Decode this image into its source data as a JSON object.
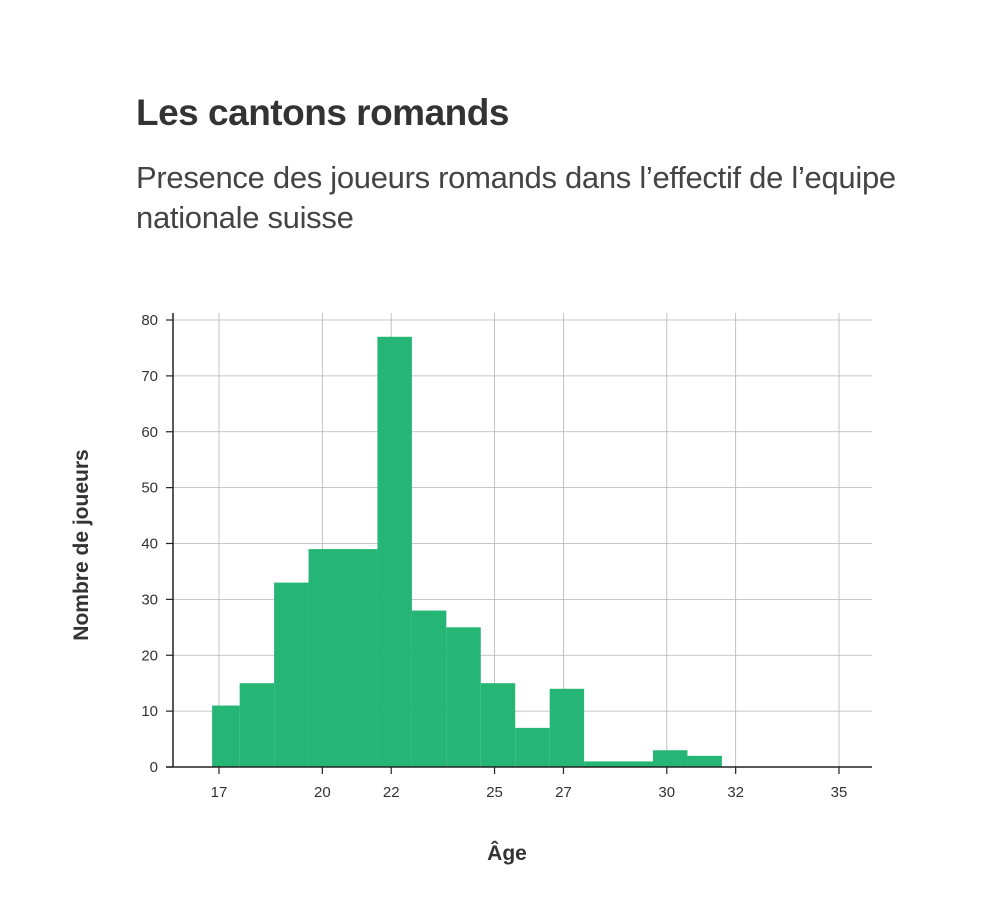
{
  "header": {
    "title": "Les cantons romands",
    "subtitle": "Presence des joueurs romands dans l’effectif de l’equipe nationale suisse"
  },
  "colors": {
    "bar": "#25b574",
    "grid": "#b5b5b5",
    "axis": "#222222",
    "text": "#333333"
  },
  "chart_data": {
    "type": "bar",
    "title": "Les cantons romands",
    "subtitle": "Presence des joueurs romands dans l’effectif de l’equipe nationale suisse",
    "xlabel": "Âge",
    "ylabel": "Nombre de joueurs",
    "xlim": [
      16,
      35.8
    ],
    "ylim": [
      0,
      80
    ],
    "x_ticks": [
      17,
      20,
      22,
      25,
      27,
      30,
      32,
      35
    ],
    "y_ticks": [
      0,
      10,
      20,
      30,
      40,
      50,
      60,
      70,
      80
    ],
    "grid": true,
    "bins": [
      {
        "x0": 16.8,
        "x1": 17.6,
        "value": 11
      },
      {
        "x0": 17.6,
        "x1": 18.6,
        "value": 15
      },
      {
        "x0": 18.6,
        "x1": 19.6,
        "value": 33
      },
      {
        "x0": 19.6,
        "x1": 21.6,
        "value": 39
      },
      {
        "x0": 21.6,
        "x1": 22.6,
        "value": 77
      },
      {
        "x0": 22.6,
        "x1": 23.6,
        "value": 28
      },
      {
        "x0": 23.6,
        "x1": 24.6,
        "value": 25
      },
      {
        "x0": 24.6,
        "x1": 25.6,
        "value": 15
      },
      {
        "x0": 25.6,
        "x1": 26.6,
        "value": 7
      },
      {
        "x0": 26.6,
        "x1": 27.6,
        "value": 14
      },
      {
        "x0": 27.6,
        "x1": 29.6,
        "value": 1
      },
      {
        "x0": 29.6,
        "x1": 30.6,
        "value": 3
      },
      {
        "x0": 30.6,
        "x1": 31.6,
        "value": 2
      }
    ]
  }
}
